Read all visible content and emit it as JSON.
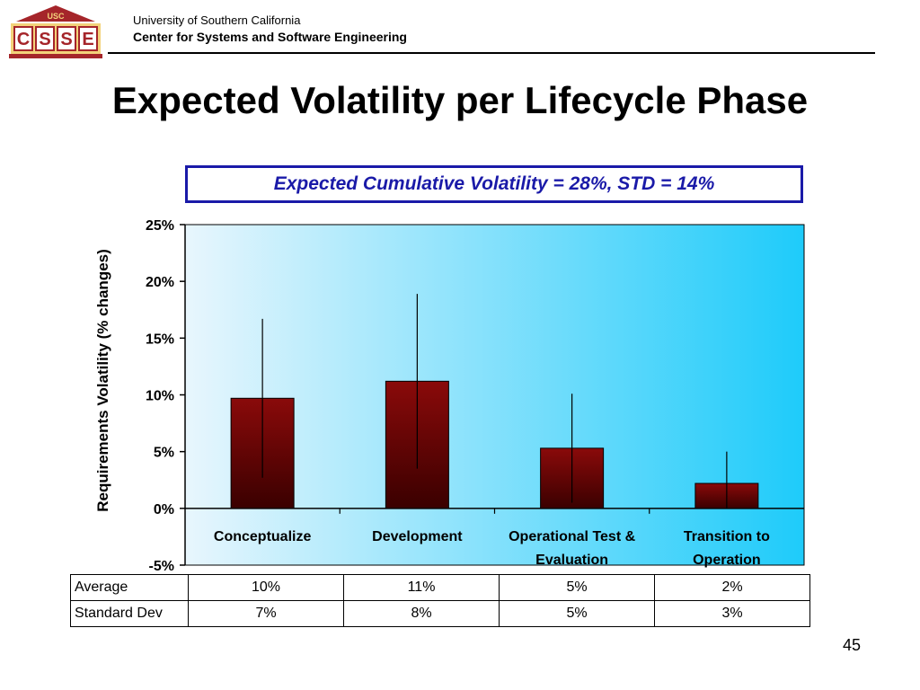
{
  "header": {
    "logo_top": "USC",
    "logo_letters": [
      "C",
      "S",
      "S",
      "E"
    ],
    "institution": "University of Southern California",
    "center": "Center for Systems and Software Engineering"
  },
  "slide": {
    "title": "Expected Volatility per Lifecycle Phase",
    "callout": "Expected Cumulative Volatility = 28%, STD = 14%",
    "page_number": "45"
  },
  "colors": {
    "bar_top": "#8a0a0a",
    "bar_bottom": "#3a0000",
    "plot_bg_left": "#e8f6fd",
    "plot_bg_right": "#1ecbfa",
    "callout_border": "#1a1aa8",
    "logo_red": "#a5252a"
  },
  "chart_data": {
    "type": "bar",
    "categories": [
      "Conceptualize",
      "Development",
      "Operational Test & Evaluation",
      "Transition to Operation"
    ],
    "category_lines": [
      [
        "Conceptualize"
      ],
      [
        "Development"
      ],
      [
        "Operational Test &",
        "Evaluation"
      ],
      [
        "Transition to",
        "Operation"
      ]
    ],
    "values": [
      9.7,
      11.2,
      5.3,
      2.2
    ],
    "errors": [
      7,
      7.7,
      4.8,
      2.8
    ],
    "ylabel": "Requirements Volatility (% changes)",
    "ylim": [
      -5,
      25
    ],
    "yticks": [
      25,
      20,
      15,
      10,
      5,
      0,
      -5
    ],
    "ytick_labels": [
      "25%",
      "20%",
      "15%",
      "10%",
      "5%",
      "0%",
      "-5%"
    ],
    "grid": false,
    "legend": "none"
  },
  "table": {
    "rows": [
      {
        "label": "Average",
        "values": [
          "10%",
          "11%",
          "5%",
          "2%"
        ]
      },
      {
        "label": "Standard Dev",
        "values": [
          "7%",
          "8%",
          "5%",
          "3%"
        ]
      }
    ]
  }
}
